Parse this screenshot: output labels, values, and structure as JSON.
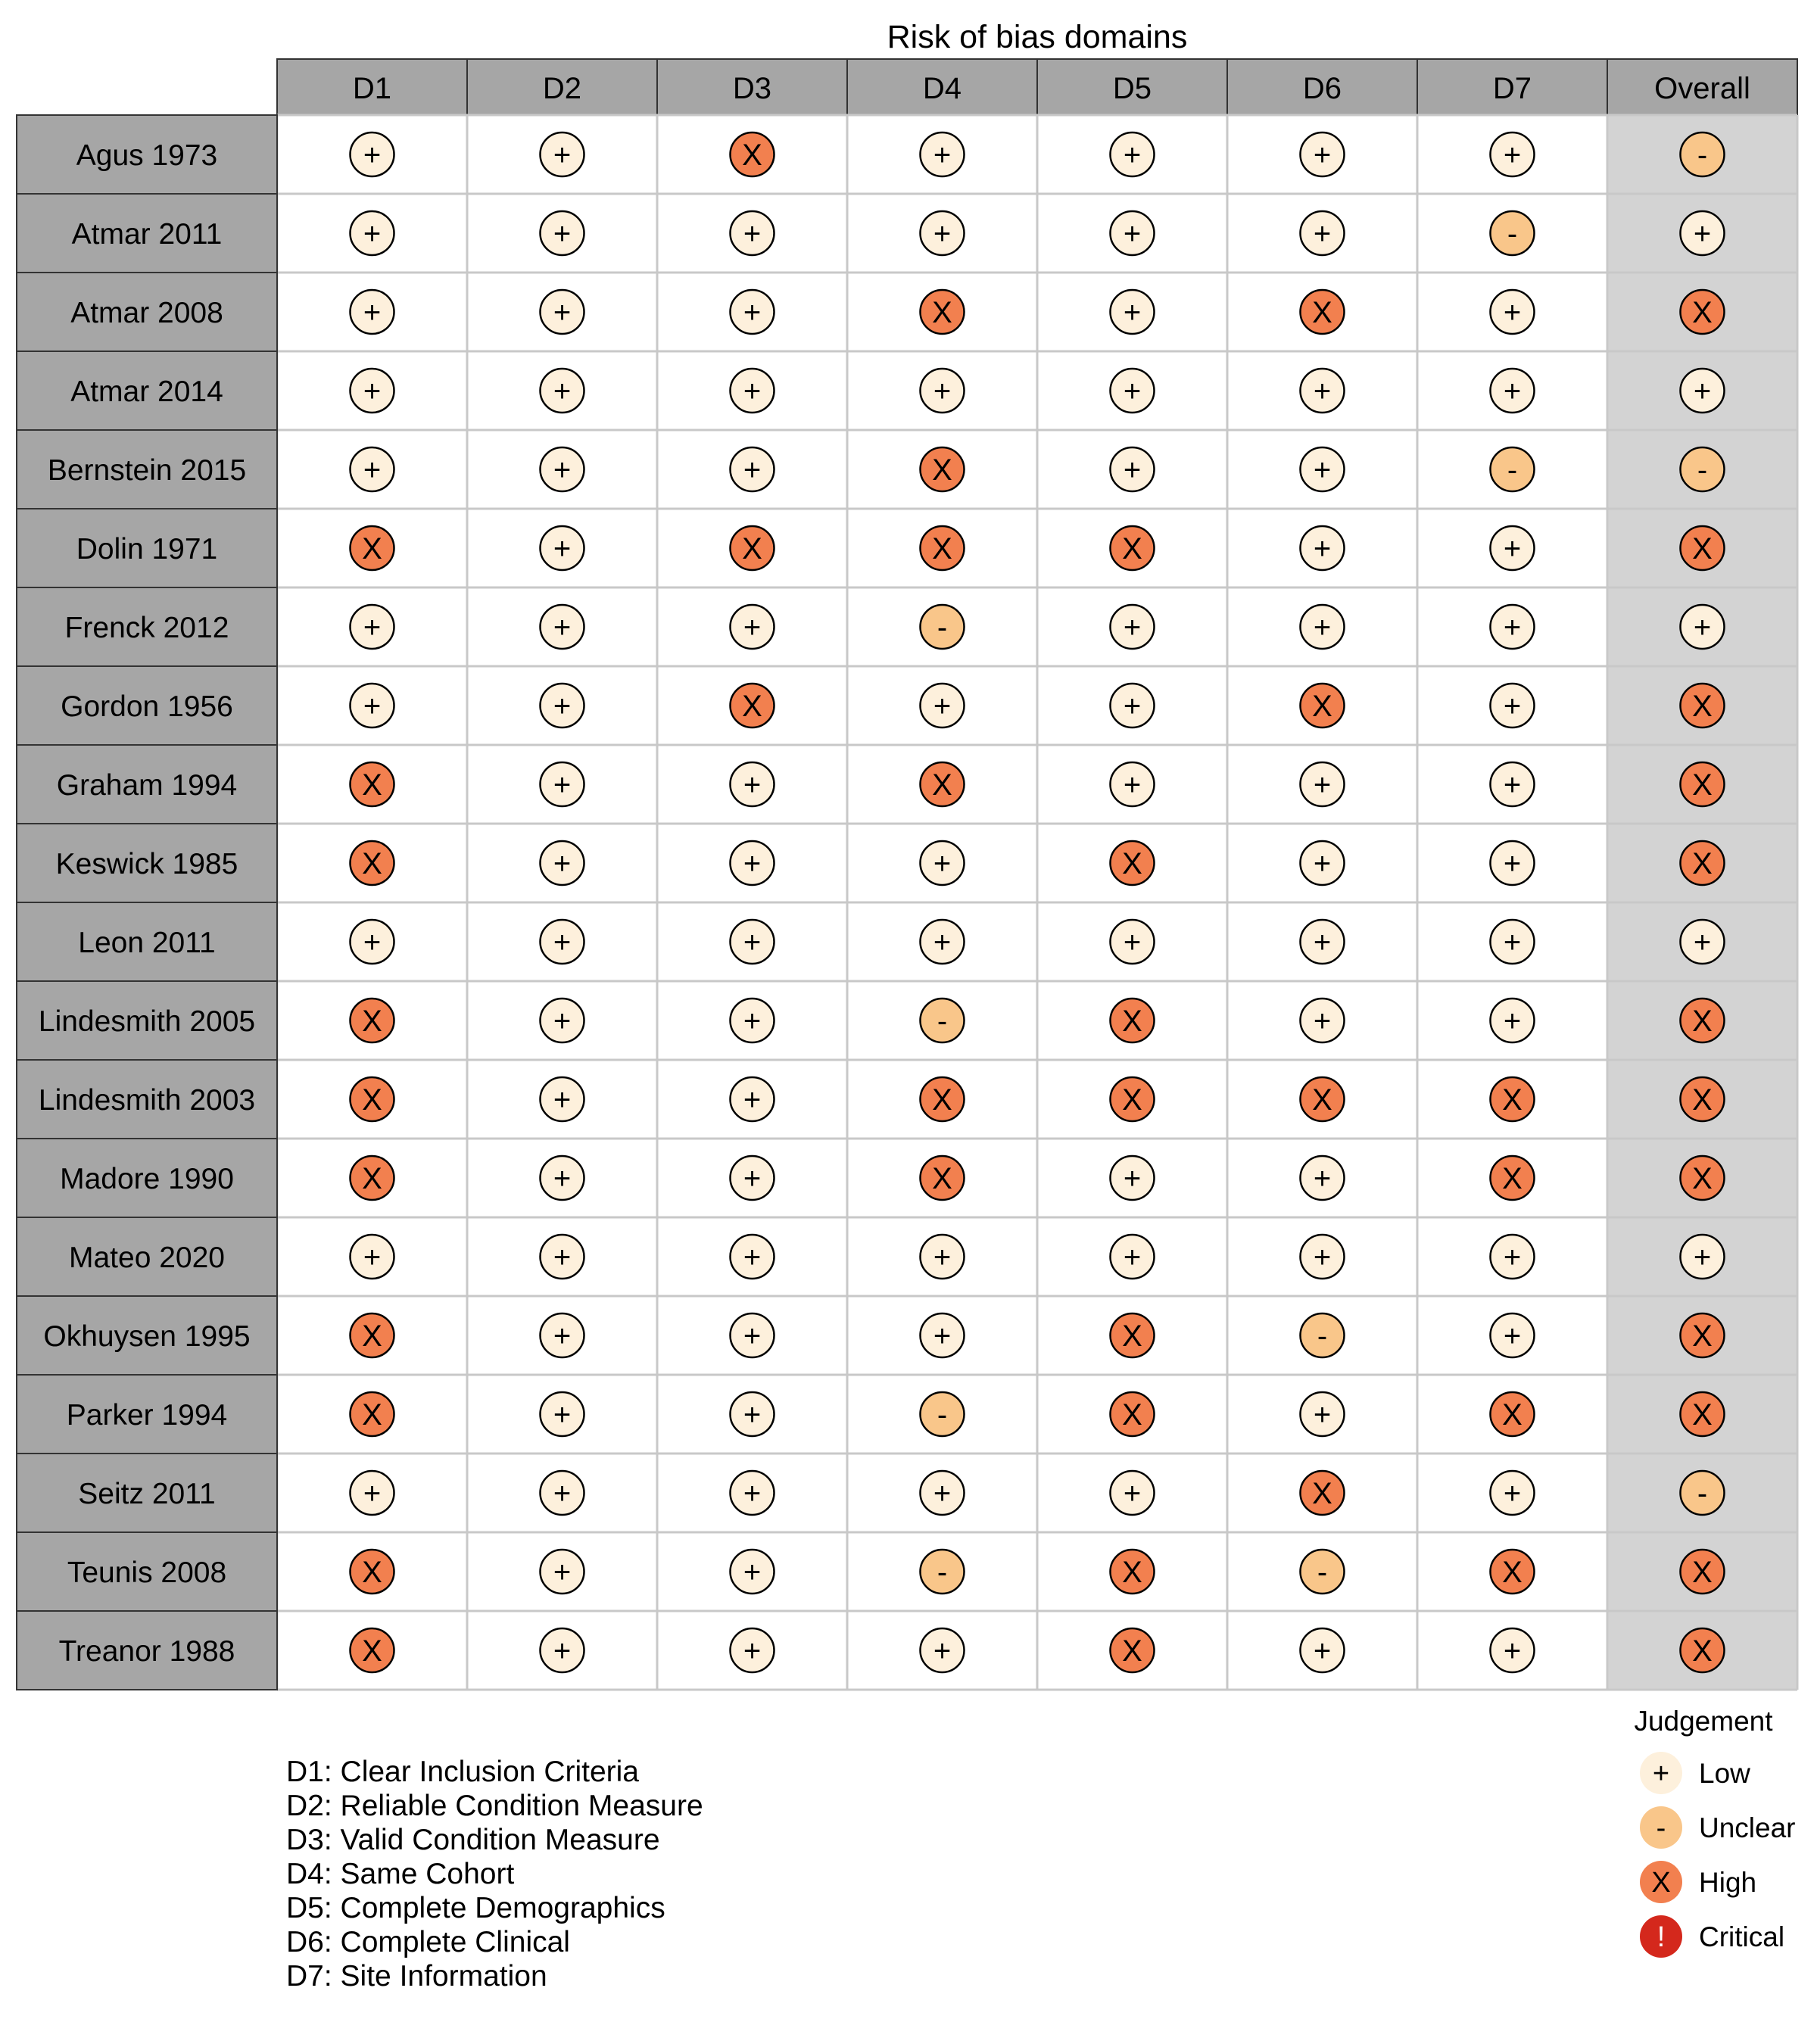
{
  "chart_data": {
    "type": "table",
    "title": "Risk of bias domains",
    "columns": [
      "D1",
      "D2",
      "D3",
      "D4",
      "D5",
      "D6",
      "D7",
      "Overall"
    ],
    "studies": [
      "Agus 1973",
      "Atmar 2011",
      "Atmar 2008",
      "Atmar 2014",
      "Bernstein 2015",
      "Dolin 1971",
      "Frenck 2012",
      "Gordon 1956",
      "Graham 1994",
      "Keswick 1985",
      "Leon 2011",
      "Lindesmith 2005",
      "Lindesmith 2003",
      "Madore 1990",
      "Mateo 2020",
      "Okhuysen 1995",
      "Parker 1994",
      "Seitz 2011",
      "Teunis 2008",
      "Treanor 1988"
    ],
    "judgements": [
      [
        "Low",
        "Low",
        "High",
        "Low",
        "Low",
        "Low",
        "Low",
        "Unclear"
      ],
      [
        "Low",
        "Low",
        "Low",
        "Low",
        "Low",
        "Low",
        "Unclear",
        "Low"
      ],
      [
        "Low",
        "Low",
        "Low",
        "High",
        "Low",
        "High",
        "Low",
        "High"
      ],
      [
        "Low",
        "Low",
        "Low",
        "Low",
        "Low",
        "Low",
        "Low",
        "Low"
      ],
      [
        "Low",
        "Low",
        "Low",
        "High",
        "Low",
        "Low",
        "Unclear",
        "Unclear"
      ],
      [
        "High",
        "Low",
        "High",
        "High",
        "High",
        "Low",
        "Low",
        "High"
      ],
      [
        "Low",
        "Low",
        "Low",
        "Unclear",
        "Low",
        "Low",
        "Low",
        "Low"
      ],
      [
        "Low",
        "Low",
        "High",
        "Low",
        "Low",
        "High",
        "Low",
        "High"
      ],
      [
        "High",
        "Low",
        "Low",
        "High",
        "Low",
        "Low",
        "Low",
        "High"
      ],
      [
        "High",
        "Low",
        "Low",
        "Low",
        "High",
        "Low",
        "Low",
        "High"
      ],
      [
        "Low",
        "Low",
        "Low",
        "Low",
        "Low",
        "Low",
        "Low",
        "Low"
      ],
      [
        "High",
        "Low",
        "Low",
        "Unclear",
        "High",
        "Low",
        "Low",
        "High"
      ],
      [
        "High",
        "Low",
        "Low",
        "High",
        "High",
        "High",
        "High",
        "High"
      ],
      [
        "High",
        "Low",
        "Low",
        "High",
        "Low",
        "Low",
        "High",
        "High"
      ],
      [
        "Low",
        "Low",
        "Low",
        "Low",
        "Low",
        "Low",
        "Low",
        "Low"
      ],
      [
        "High",
        "Low",
        "Low",
        "Low",
        "High",
        "Unclear",
        "Low",
        "High"
      ],
      [
        "High",
        "Low",
        "Low",
        "Unclear",
        "High",
        "Low",
        "High",
        "High"
      ],
      [
        "Low",
        "Low",
        "Low",
        "Low",
        "Low",
        "High",
        "Low",
        "Unclear"
      ],
      [
        "High",
        "Low",
        "Low",
        "Unclear",
        "High",
        "Unclear",
        "High",
        "High"
      ],
      [
        "High",
        "Low",
        "Low",
        "Low",
        "High",
        "Low",
        "Low",
        "High"
      ]
    ],
    "domain_definitions": [
      "D1: Clear Inclusion Criteria",
      "D2: Reliable Condition Measure",
      "D3: Valid Condition Measure",
      "D4: Same Cohort",
      "D5: Complete Demographics",
      "D6: Complete Clinical",
      "D7: Site Information"
    ],
    "legend": {
      "title": "Judgement",
      "position": "bottom-right",
      "items": [
        {
          "label": "Low",
          "symbol": "+",
          "color": "#fdf0dc"
        },
        {
          "label": "Unclear",
          "symbol": "-",
          "color": "#f9c68a"
        },
        {
          "label": "High",
          "symbol": "X",
          "color": "#f2804f"
        },
        {
          "label": "Critical",
          "symbol": "!",
          "color": "#d4281c"
        }
      ]
    },
    "colors": {
      "header_fill": "#a6a6a6",
      "overall_column_fill": "#d3d3d3",
      "cell_fill": "#ffffff",
      "grid_line": "#c8c8c8"
    }
  }
}
